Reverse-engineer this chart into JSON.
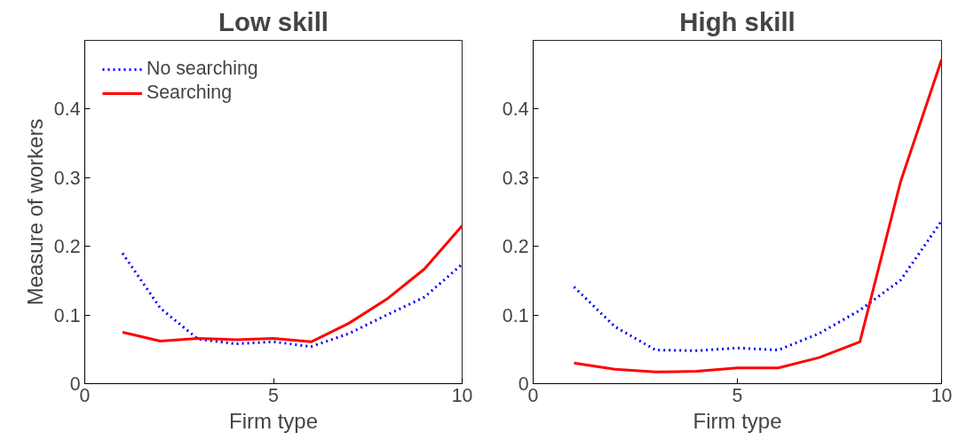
{
  "chart_data": [
    {
      "type": "line",
      "title": "Low skill",
      "xlabel": "Firm type",
      "ylabel": "Measure of workers",
      "x": [
        1,
        2,
        3,
        4,
        5,
        6,
        7,
        8,
        9,
        10
      ],
      "xlim": [
        0,
        10
      ],
      "xticks": [
        0,
        5,
        10
      ],
      "ylim": [
        0,
        0.5
      ],
      "yticks": [
        0,
        0.1,
        0.2,
        0.3,
        0.4
      ],
      "grid": false,
      "legend": "top left",
      "series": [
        {
          "name": "No searching",
          "color": "#0000ff",
          "line_style": "dotted",
          "values": [
            0.19,
            0.11,
            0.065,
            0.058,
            0.061,
            0.054,
            0.073,
            0.1,
            0.126,
            0.174
          ]
        },
        {
          "name": "Searching",
          "color": "#ff0000",
          "line_style": "solid",
          "values": [
            0.075,
            0.062,
            0.066,
            0.064,
            0.066,
            0.061,
            0.088,
            0.123,
            0.167,
            0.23
          ]
        }
      ]
    },
    {
      "type": "line",
      "title": "High skill",
      "xlabel": "Firm type",
      "x": [
        1,
        2,
        3,
        4,
        5,
        6,
        7,
        8,
        9,
        10
      ],
      "xlim": [
        0,
        10
      ],
      "xticks": [
        0,
        5,
        10
      ],
      "ylim": [
        0,
        0.5
      ],
      "yticks": [
        0,
        0.1,
        0.2,
        0.3,
        0.4
      ],
      "grid": false,
      "series": [
        {
          "color": "#0000ff",
          "line_style": "dotted",
          "values": [
            0.141,
            0.083,
            0.049,
            0.048,
            0.052,
            0.049,
            0.073,
            0.107,
            0.151,
            0.237
          ]
        },
        {
          "color": "#ff0000",
          "line_style": "solid",
          "values": [
            0.03,
            0.021,
            0.017,
            0.018,
            0.023,
            0.023,
            0.038,
            0.061,
            0.295,
            0.472
          ]
        }
      ]
    }
  ]
}
